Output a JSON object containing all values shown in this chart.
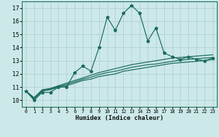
{
  "xlabel": "Humidex (Indice chaleur)",
  "background_color": "#cce8e8",
  "line_color": "#1a6b5a",
  "grid_color": "#aacccc",
  "x_data": [
    0,
    1,
    2,
    3,
    4,
    5,
    6,
    7,
    8,
    9,
    10,
    11,
    12,
    13,
    14,
    15,
    16,
    17,
    18,
    19,
    20,
    21,
    22,
    23
  ],
  "series1": [
    10.7,
    10.0,
    10.6,
    10.6,
    11.0,
    11.0,
    12.1,
    12.6,
    12.2,
    14.0,
    16.3,
    15.3,
    16.6,
    17.2,
    16.6,
    14.5,
    15.5,
    13.6,
    13.3,
    13.1,
    13.3,
    13.1,
    13.0,
    13.2
  ],
  "series2": [
    10.7,
    10.1,
    10.7,
    10.8,
    11.0,
    11.1,
    11.3,
    11.5,
    11.6,
    11.8,
    11.9,
    12.0,
    12.2,
    12.3,
    12.4,
    12.5,
    12.6,
    12.7,
    12.8,
    12.85,
    12.9,
    12.95,
    13.0,
    13.1
  ],
  "series3": [
    10.7,
    10.15,
    10.75,
    10.85,
    11.05,
    11.2,
    11.4,
    11.6,
    11.75,
    11.95,
    12.1,
    12.2,
    12.35,
    12.5,
    12.6,
    12.7,
    12.75,
    12.85,
    12.95,
    13.05,
    13.1,
    13.15,
    13.2,
    13.25
  ],
  "series4": [
    10.7,
    10.2,
    10.8,
    10.9,
    11.1,
    11.3,
    11.5,
    11.7,
    11.9,
    12.1,
    12.25,
    12.4,
    12.55,
    12.7,
    12.8,
    12.9,
    13.0,
    13.1,
    13.2,
    13.25,
    13.3,
    13.35,
    13.4,
    13.45
  ],
  "ylim": [
    9.5,
    17.5
  ],
  "xlim": [
    -0.5,
    23.5
  ],
  "yticks": [
    10,
    11,
    12,
    13,
    14,
    15,
    16,
    17
  ],
  "xticks": [
    0,
    1,
    2,
    3,
    4,
    5,
    6,
    7,
    8,
    9,
    10,
    11,
    12,
    13,
    14,
    15,
    16,
    17,
    18,
    19,
    20,
    21,
    22,
    23
  ]
}
